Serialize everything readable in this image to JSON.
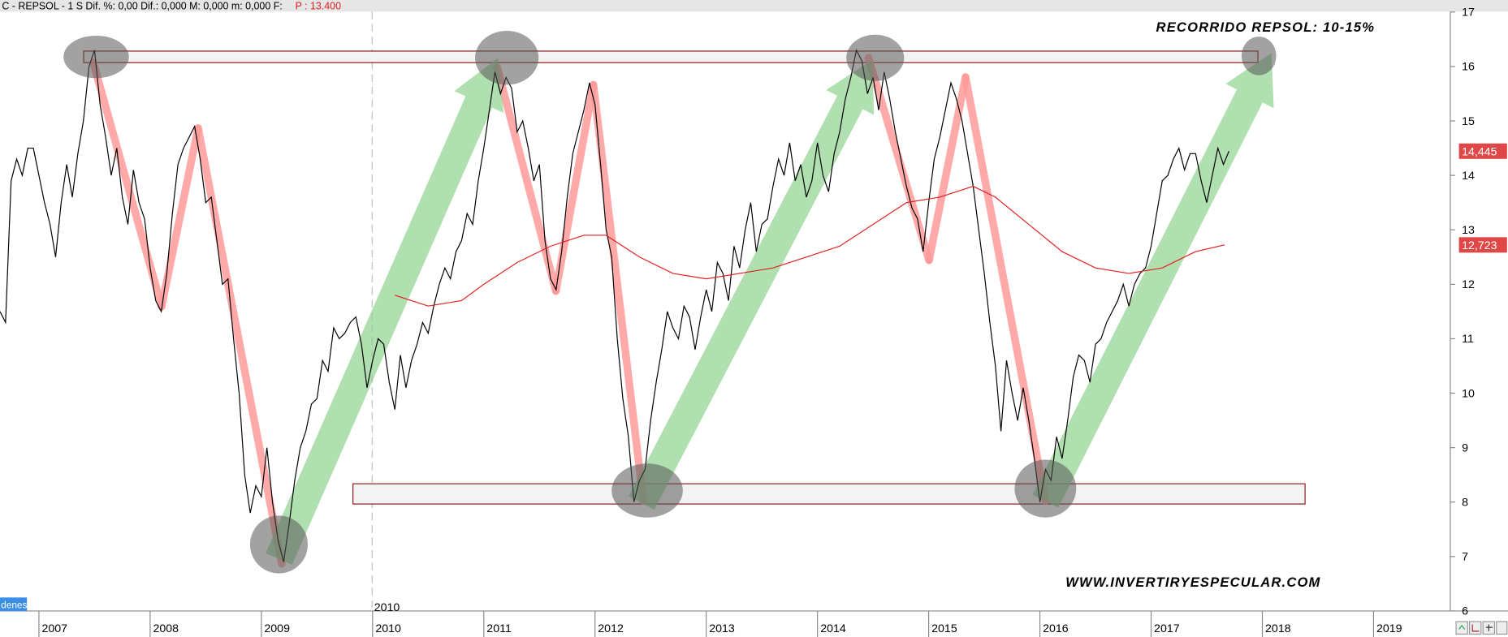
{
  "chart_data": {
    "type": "line",
    "header": "C - REPSOL -  1 S  Dif. %: 0,00  Dif.: 0,000  M: 0,000  m: 0,000  F:",
    "header_price": "P : 13.400",
    "title": "RECORRIDO REPSOL: 10-15%",
    "watermark": "WWW.INVERTIRYESPECULAR.COM",
    "divider_label": "2010",
    "tab_label": "denes",
    "xlim": [
      2006.65,
      2019.69
    ],
    "xticks": [
      2007,
      2008,
      2009,
      2010,
      2011,
      2012,
      2013,
      2014,
      2015,
      2016,
      2017,
      2018,
      2019
    ],
    "ylim": [
      6,
      17
    ],
    "yticks": [
      6,
      7,
      8,
      9,
      10,
      11,
      12,
      13,
      14,
      15,
      16,
      17
    ],
    "series": [
      {
        "color": "#000000",
        "last_label": "14,445",
        "label_color": "#e04848",
        "x": [
          2006.65,
          2006.7,
          2006.75,
          2006.8,
          2006.85,
          2006.9,
          2006.95,
          2007.0,
          2007.05,
          2007.1,
          2007.15,
          2007.2,
          2007.25,
          2007.3,
          2007.35,
          2007.4,
          2007.45,
          2007.5,
          2007.55,
          2007.6,
          2007.65,
          2007.7,
          2007.75,
          2007.8,
          2007.85,
          2007.9,
          2007.95,
          2008.0,
          2008.05,
          2008.1,
          2008.15,
          2008.2,
          2008.25,
          2008.3,
          2008.35,
          2008.4,
          2008.45,
          2008.5,
          2008.55,
          2008.6,
          2008.65,
          2008.7,
          2008.75,
          2008.8,
          2008.85,
          2008.9,
          2008.95,
          2009.0,
          2009.05,
          2009.1,
          2009.15,
          2009.2,
          2009.25,
          2009.3,
          2009.35,
          2009.4,
          2009.45,
          2009.5,
          2009.55,
          2009.6,
          2009.65,
          2009.7,
          2009.75,
          2009.8,
          2009.85,
          2009.9,
          2009.95,
          2010.0,
          2010.05,
          2010.1,
          2010.15,
          2010.2,
          2010.25,
          2010.3,
          2010.35,
          2010.4,
          2010.45,
          2010.5,
          2010.55,
          2010.6,
          2010.65,
          2010.7,
          2010.75,
          2010.8,
          2010.85,
          2010.9,
          2010.95,
          2011.0,
          2011.05,
          2011.1,
          2011.15,
          2011.2,
          2011.25,
          2011.3,
          2011.35,
          2011.4,
          2011.45,
          2011.5,
          2011.55,
          2011.6,
          2011.65,
          2011.7,
          2011.75,
          2011.8,
          2011.85,
          2011.9,
          2011.95,
          2012.0,
          2012.05,
          2012.1,
          2012.15,
          2012.2,
          2012.25,
          2012.3,
          2012.35,
          2012.4,
          2012.45,
          2012.5,
          2012.55,
          2012.6,
          2012.65,
          2012.7,
          2012.75,
          2012.8,
          2012.85,
          2012.9,
          2012.95,
          2013.0,
          2013.05,
          2013.1,
          2013.15,
          2013.2,
          2013.25,
          2013.3,
          2013.35,
          2013.4,
          2013.45,
          2013.5,
          2013.55,
          2013.6,
          2013.65,
          2013.7,
          2013.75,
          2013.8,
          2013.85,
          2013.9,
          2013.95,
          2014.0,
          2014.05,
          2014.1,
          2014.15,
          2014.2,
          2014.25,
          2014.3,
          2014.35,
          2014.4,
          2014.45,
          2014.5,
          2014.55,
          2014.6,
          2014.65,
          2014.7,
          2014.75,
          2014.8,
          2014.85,
          2014.9,
          2014.95,
          2015.0,
          2015.05,
          2015.1,
          2015.15,
          2015.2,
          2015.25,
          2015.3,
          2015.35,
          2015.4,
          2015.45,
          2015.5,
          2015.55,
          2015.6,
          2015.65,
          2015.7,
          2015.75,
          2015.8,
          2015.85,
          2015.9,
          2015.95,
          2016.0,
          2016.05,
          2016.1,
          2016.15,
          2016.2,
          2016.25,
          2016.3,
          2016.35,
          2016.4,
          2016.45,
          2016.5,
          2016.55,
          2016.6,
          2016.65,
          2016.7,
          2016.75,
          2016.8,
          2016.85,
          2016.9,
          2016.95,
          2017.0,
          2017.05,
          2017.1,
          2017.15,
          2017.2,
          2017.25,
          2017.3,
          2017.35,
          2017.4,
          2017.45,
          2017.5,
          2017.55,
          2017.6,
          2017.65,
          2017.7
        ],
        "values": [
          11.5,
          11.3,
          13.9,
          14.3,
          14.0,
          14.5,
          14.5,
          14.0,
          13.5,
          13.1,
          12.5,
          13.5,
          14.2,
          13.6,
          14.4,
          15.0,
          16.0,
          16.3,
          15.3,
          14.7,
          14.0,
          14.5,
          13.6,
          13.1,
          14.1,
          13.5,
          13.2,
          12.3,
          11.7,
          11.5,
          12.2,
          13.3,
          14.2,
          14.5,
          14.7,
          14.9,
          14.3,
          13.5,
          13.6,
          12.8,
          12.0,
          12.1,
          11.0,
          10.0,
          8.5,
          7.8,
          8.3,
          8.1,
          9.0,
          8.0,
          7.3,
          6.9,
          7.6,
          8.4,
          9.0,
          9.3,
          9.8,
          9.9,
          10.6,
          10.4,
          11.2,
          11.0,
          11.1,
          11.3,
          11.4,
          10.9,
          10.1,
          10.6,
          11.0,
          10.9,
          10.2,
          9.7,
          10.7,
          10.1,
          10.6,
          10.9,
          11.3,
          11.1,
          11.6,
          12.0,
          12.3,
          12.1,
          12.6,
          12.8,
          13.3,
          13.1,
          13.9,
          14.5,
          15.2,
          15.9,
          15.5,
          15.8,
          15.6,
          14.8,
          15.0,
          14.5,
          13.9,
          14.2,
          12.8,
          12.1,
          11.9,
          12.6,
          13.6,
          14.4,
          14.8,
          15.2,
          15.7,
          15.3,
          14.2,
          13.0,
          12.5,
          11.0,
          9.9,
          9.2,
          8.0,
          8.4,
          8.6,
          9.5,
          10.2,
          10.8,
          11.5,
          11.2,
          11.0,
          11.6,
          11.4,
          10.8,
          11.4,
          11.9,
          11.5,
          12.4,
          12.2,
          11.7,
          12.7,
          12.3,
          13.0,
          13.5,
          12.6,
          13.1,
          13.2,
          13.8,
          14.3,
          14.0,
          14.6,
          13.9,
          14.2,
          13.6,
          13.9,
          14.6,
          14.0,
          13.7,
          14.4,
          14.8,
          15.4,
          15.8,
          16.3,
          16.1,
          15.5,
          15.8,
          15.2,
          15.9,
          15.4,
          14.8,
          14.3,
          13.8,
          13.4,
          13.2,
          12.6,
          13.5,
          14.3,
          14.7,
          15.2,
          15.7,
          15.4,
          15.0,
          14.4,
          13.8,
          13.0,
          12.2,
          11.3,
          10.5,
          9.3,
          10.6,
          10.0,
          9.5,
          10.1,
          9.5,
          8.8,
          8.0,
          8.6,
          8.4,
          9.2,
          8.8,
          9.5,
          10.3,
          10.7,
          10.6,
          10.2,
          10.9,
          11.0,
          11.3,
          11.5,
          11.7,
          12.0,
          11.6,
          12.0,
          12.2,
          12.3,
          12.7,
          13.3,
          13.9,
          14.0,
          14.3,
          14.5,
          14.1,
          14.4,
          14.4,
          13.9,
          13.5,
          14.0,
          14.5,
          14.2,
          14.445
        ]
      },
      {
        "color": "#e02020",
        "last_label": "12,723",
        "label_color": "#e04848",
        "x": [
          2010.2,
          2010.5,
          2010.8,
          2011.0,
          2011.3,
          2011.6,
          2011.9,
          2012.1,
          2012.4,
          2012.7,
          2013.0,
          2013.3,
          2013.6,
          2013.9,
          2014.2,
          2014.5,
          2014.8,
          2015.1,
          2015.4,
          2015.6,
          2015.9,
          2016.2,
          2016.5,
          2016.8,
          2017.1,
          2017.4,
          2017.66
        ],
        "values": [
          11.8,
          11.6,
          11.7,
          12.0,
          12.4,
          12.7,
          12.9,
          12.9,
          12.5,
          12.2,
          12.1,
          12.2,
          12.3,
          12.5,
          12.7,
          13.1,
          13.5,
          13.6,
          13.8,
          13.6,
          13.1,
          12.6,
          12.3,
          12.2,
          12.3,
          12.6,
          12.723
        ]
      }
    ]
  }
}
